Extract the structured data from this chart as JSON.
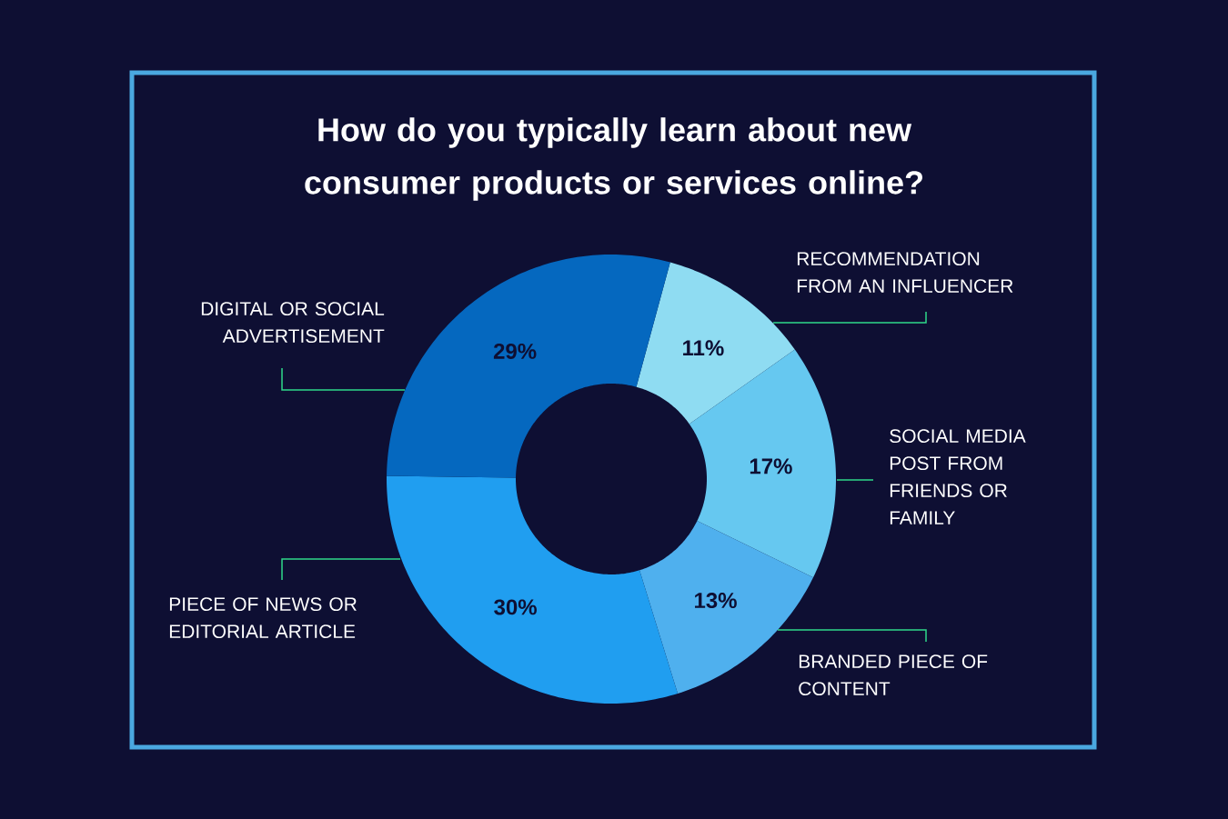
{
  "chart_data": {
    "type": "donut",
    "title": "How do you typically learn about new consumer products or services online?",
    "categories": [
      "RECOMMENDATION FROM AN INFLUENCER",
      "SOCIAL MEDIA POST FROM FRIENDS OR FAMILY",
      "BRANDED PIECE OF CONTENT",
      "PIECE OF NEWS OR EDITORIAL ARTICLE",
      "DIGITAL OR SOCIAL ADVERTISEMENT"
    ],
    "values": [
      11,
      17,
      13,
      30,
      29
    ],
    "value_labels": [
      "11%",
      "17%",
      "13%",
      "30%",
      "29%"
    ],
    "colors": [
      "#8fdcf2",
      "#66c8f0",
      "#4fb0ee",
      "#209ef0",
      "#0568bf"
    ]
  }
}
